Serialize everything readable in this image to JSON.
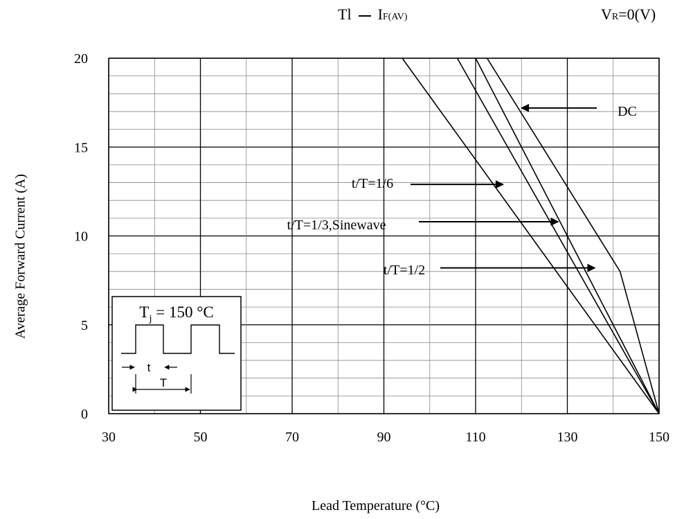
{
  "header": {
    "title_main": "Tl",
    "title_dash": "—",
    "title_var": "I",
    "title_var_sub": "F(AV)",
    "condition_main": "V",
    "condition_sub": "R",
    "condition_rest": "=0(V)"
  },
  "chart_data": {
    "type": "line",
    "title": "Tl — IF(AV)",
    "xlabel": "Lead Temperature (°C)",
    "ylabel": "Average Forward Current (A)",
    "xlim": [
      30,
      150
    ],
    "ylim": [
      0,
      20
    ],
    "x_ticks": [
      30,
      50,
      70,
      90,
      110,
      130,
      150
    ],
    "y_ticks": [
      0,
      5,
      10,
      15,
      20
    ],
    "grid": true,
    "series": [
      {
        "name": "DC",
        "points": [
          [
            110,
            20
          ],
          [
            150,
            0
          ]
        ]
      },
      {
        "name": "t/T=1/6",
        "points": [
          [
            106,
            20
          ],
          [
            150,
            0
          ]
        ]
      },
      {
        "name": "t/T=1/3,Sinewave",
        "points": [
          [
            112.5,
            20
          ],
          [
            141.5,
            8
          ],
          [
            150,
            0
          ]
        ]
      },
      {
        "name": "t/T=1/2",
        "points": [
          [
            94,
            20
          ],
          [
            150,
            0
          ]
        ]
      }
    ],
    "annotations": [
      {
        "text": "DC",
        "arrow_to": [
          120,
          17.2
        ]
      },
      {
        "text": "t/T=1/6",
        "arrow_to": [
          116,
          12.9
        ]
      },
      {
        "text": "t/T=1/3,Sinewave",
        "arrow_to": [
          128,
          10.8
        ]
      },
      {
        "text": "t/T=1/2",
        "arrow_to": [
          136,
          8.2
        ]
      }
    ]
  },
  "inset": {
    "tj_main": "T",
    "tj_sub": "j",
    "tj_rest": " = 150 °C",
    "t_label": "t",
    "T_label": "T"
  }
}
